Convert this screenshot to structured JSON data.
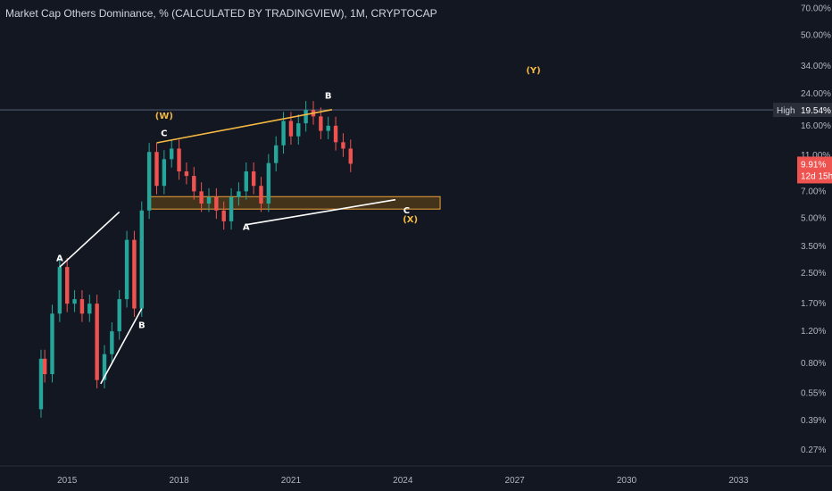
{
  "header": {
    "title": "Market Cap Others Dominance, % (CALCULATED BY TRADINGVIEW), 1M, CRYPTOCAP"
  },
  "colors": {
    "background": "#131722",
    "up": "#26a69a",
    "down": "#ef5350",
    "wave_orange": "#f5b942",
    "trendline_white": "#ffffff",
    "zone_fill": "#6b4a16",
    "zone_border": "#f0a23a",
    "high_line": "#5d6b80",
    "current_badge": "#ef5350"
  },
  "badges": {
    "high_label": "High",
    "high_value": "19.54%",
    "current_value": "9.91%",
    "current_countdown": "12d 15h"
  },
  "chart_data": {
    "type": "candlestick",
    "title": "Market Cap Others Dominance, % (CALCULATED BY TRADINGVIEW), 1M, CRYPTOCAP",
    "y_scale": "log",
    "y_ticks": [
      "70.00%",
      "50.00%",
      "34.00%",
      "24.00%",
      "16.00%",
      "11.00%",
      "7.00%",
      "5.00%",
      "3.50%",
      "2.50%",
      "1.70%",
      "1.20%",
      "0.80%",
      "0.55%",
      "0.39%",
      "0.27%"
    ],
    "y_tick_values": [
      70,
      50,
      34,
      24,
      16,
      11,
      7,
      5,
      3.5,
      2.5,
      1.7,
      1.2,
      0.8,
      0.55,
      0.39,
      0.27
    ],
    "x_ticks": [
      "2015",
      "2018",
      "2021",
      "2024",
      "2027",
      "2030",
      "2033"
    ],
    "x_tick_values": [
      2015,
      2018,
      2021,
      2024,
      2027,
      2030,
      2033
    ],
    "series": [
      {
        "comment_free_points": true,
        "t": [
          2014.2,
          2014.3,
          2014.4,
          2014.6,
          2014.8,
          2015.0,
          2015.2,
          2015.4,
          2015.6,
          2015.8,
          2016.0,
          2016.2,
          2016.4,
          2016.6,
          2016.8,
          2017.0,
          2017.2,
          2017.4,
          2017.6,
          2017.8,
          2018.0,
          2018.2,
          2018.4,
          2018.6,
          2018.8,
          2019.0,
          2019.2,
          2019.4,
          2019.6,
          2019.8,
          2020.0,
          2020.2,
          2020.4,
          2020.6,
          2020.8,
          2021.0,
          2021.2,
          2021.4,
          2021.6,
          2021.8,
          2022.0,
          2022.2,
          2022.4,
          2022.6
        ],
        "values": [
          0.45,
          0.85,
          0.7,
          1.5,
          2.7,
          1.7,
          1.8,
          1.5,
          1.7,
          0.65,
          0.9,
          1.2,
          1.8,
          3.8,
          1.6,
          5.5,
          11.5,
          7.5,
          10.5,
          12.0,
          9.0,
          8.5,
          7.0,
          6.0,
          6.5,
          5.5,
          4.8,
          6.5,
          7.0,
          9.0,
          7.5,
          6.0,
          10.0,
          12.5,
          17.0,
          14.0,
          16.5,
          19.5,
          18.0,
          15.0,
          16.0,
          13.0,
          12.0,
          9.91
        ]
      }
    ],
    "high": 19.54,
    "last": 9.91,
    "wave_labels": [
      {
        "text": "A",
        "t": 2014.8,
        "v": 2.9,
        "color": "white"
      },
      {
        "text": "B",
        "t": 2017.0,
        "v": 1.25,
        "color": "white"
      },
      {
        "text": "C",
        "t": 2017.6,
        "v": 14.0,
        "color": "white"
      },
      {
        "text": "(W)",
        "t": 2017.6,
        "v": 17.5,
        "color": "orange"
      },
      {
        "text": "A",
        "t": 2019.8,
        "v": 4.3,
        "color": "white"
      },
      {
        "text": "B",
        "t": 2022.0,
        "v": 22.5,
        "color": "white"
      },
      {
        "text": "C",
        "t": 2024.1,
        "v": 5.3,
        "color": "white"
      },
      {
        "text": "(X)",
        "t": 2024.2,
        "v": 4.75,
        "color": "orange"
      },
      {
        "text": "(Y)",
        "t": 2027.5,
        "v": 31.0,
        "color": "orange"
      }
    ],
    "lines": [
      {
        "color": "white",
        "from": [
          2014.8,
          2.7
        ],
        "to": [
          2016.4,
          5.4
        ]
      },
      {
        "color": "white",
        "from": [
          2015.9,
          0.62
        ],
        "to": [
          2017.0,
          1.6
        ]
      },
      {
        "color": "white",
        "from": [
          2019.8,
          4.6
        ],
        "to": [
          2023.8,
          6.3
        ]
      },
      {
        "color": "orange",
        "from": [
          2017.4,
          12.9
        ],
        "to": [
          2022.1,
          19.6
        ]
      }
    ],
    "zone": {
      "t0": 2017.2,
      "t1": 2025.0,
      "v_low": 5.6,
      "v_high": 6.55
    },
    "ylim": [
      0.22,
      78
    ],
    "xlim": [
      2013.2,
      2034.5
    ]
  }
}
